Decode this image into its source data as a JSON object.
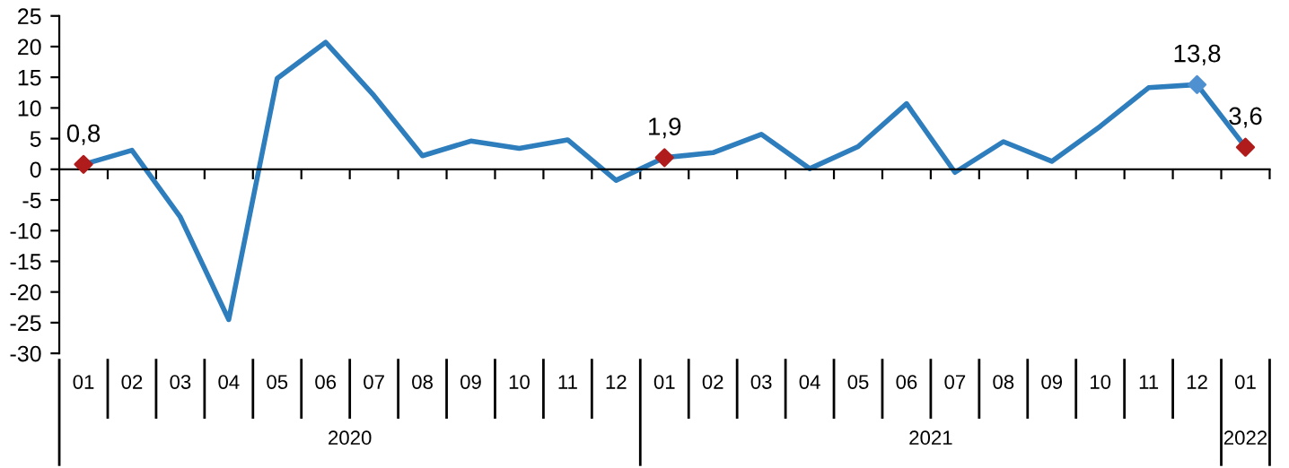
{
  "chart_data": {
    "type": "line",
    "categories": [
      "01",
      "02",
      "03",
      "04",
      "05",
      "06",
      "07",
      "08",
      "09",
      "10",
      "11",
      "12",
      "01",
      "02",
      "03",
      "04",
      "05",
      "06",
      "07",
      "08",
      "09",
      "10",
      "11",
      "12",
      "01"
    ],
    "series": [
      {
        "color": "#2e7ebd",
        "values": [
          0.8,
          3.1,
          -7.8,
          -24.5,
          14.8,
          20.7,
          12.0,
          2.2,
          4.6,
          3.4,
          4.8,
          -1.8,
          1.9,
          2.7,
          5.7,
          0.1,
          3.7,
          10.7,
          -0.5,
          4.5,
          1.3,
          7.0,
          13.3,
          13.8,
          3.6
        ]
      },
      {
        "type": "scatter",
        "color": "#b01c1c",
        "marker": "diamond",
        "values": [
          0.8,
          null,
          null,
          null,
          null,
          null,
          null,
          null,
          null,
          null,
          null,
          null,
          1.9,
          null,
          null,
          null,
          null,
          null,
          null,
          null,
          null,
          null,
          null,
          null,
          3.6
        ],
        "value_labels": [
          "0,8",
          null,
          null,
          null,
          null,
          null,
          null,
          null,
          null,
          null,
          null,
          null,
          "1,9",
          null,
          null,
          null,
          null,
          null,
          null,
          null,
          null,
          null,
          null,
          null,
          "3,6"
        ]
      },
      {
        "type": "scatter",
        "color": "#4f90d0",
        "marker": "diamond",
        "values": [
          null,
          null,
          null,
          null,
          null,
          null,
          null,
          null,
          null,
          null,
          null,
          null,
          null,
          null,
          null,
          null,
          null,
          null,
          null,
          null,
          null,
          null,
          null,
          13.8,
          null
        ],
        "value_labels": [
          null,
          null,
          null,
          null,
          null,
          null,
          null,
          null,
          null,
          null,
          null,
          null,
          null,
          null,
          null,
          null,
          null,
          null,
          null,
          null,
          null,
          null,
          null,
          "13,8",
          null
        ]
      }
    ],
    "annotations": [
      "2020",
      "2021",
      "2022"
    ],
    "ylim": [
      -30,
      25
    ],
    "yticks": [
      -30,
      -25,
      -20,
      -15,
      -10,
      -5,
      0,
      5,
      10,
      15,
      20,
      25
    ],
    "legend": false
  }
}
